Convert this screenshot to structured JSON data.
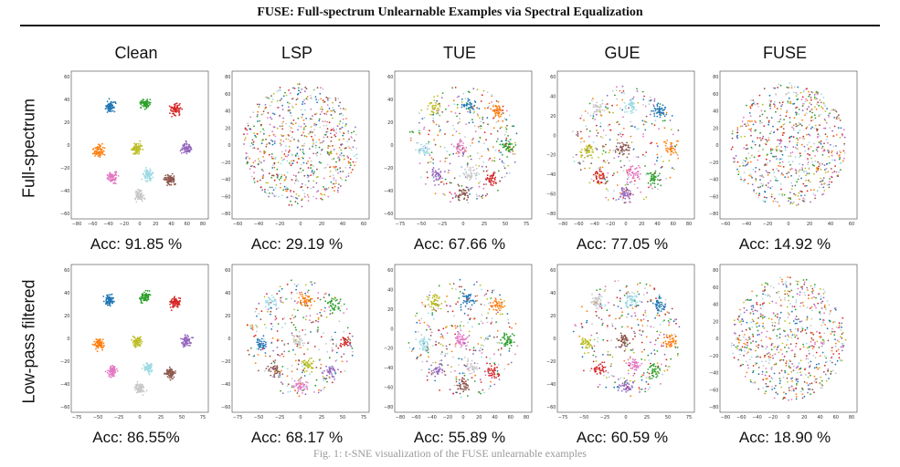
{
  "header": {
    "title": "FUSE: Full-spectrum Unlearnable Examples via Spectral Equalization"
  },
  "columns": [
    "Clean",
    "LSP",
    "TUE",
    "GUE",
    "FUSE"
  ],
  "rows": [
    {
      "label": "Full-spectrum",
      "panels": [
        {
          "acc": "Acc: 91.85 %",
          "style": "clustered",
          "xticks": [
            "−80",
            "−60",
            "−40",
            "−20",
            "0",
            "20",
            "40",
            "60",
            "80"
          ],
          "yticks": [
            "60",
            "40",
            "20",
            "0",
            "−20",
            "−40",
            "−60"
          ]
        },
        {
          "acc": "Acc: 29.19 %",
          "style": "mixed",
          "xticks": [
            "−60",
            "−40",
            "−20",
            "0",
            "20",
            "40",
            "60"
          ],
          "yticks": [
            "80",
            "60",
            "40",
            "20",
            "0",
            "−20",
            "−40",
            "−60",
            "−80"
          ]
        },
        {
          "acc": "Acc: 67.66 %",
          "style": "semi",
          "xticks": [
            "−75",
            "−50",
            "−25",
            "0",
            "25",
            "50",
            "75"
          ],
          "yticks": [
            "60",
            "40",
            "20",
            "0",
            "−20",
            "−40",
            "−60"
          ]
        },
        {
          "acc": "Acc: 77.05 %",
          "style": "semi",
          "xticks": [
            "−80",
            "−60",
            "−40",
            "−20",
            "0",
            "20",
            "40",
            "60",
            "80"
          ],
          "yticks": [
            "60",
            "40",
            "20",
            "0",
            "−20",
            "−40",
            "−60",
            "−80"
          ]
        },
        {
          "acc": "Acc: 14.92 %",
          "style": "mixed",
          "xticks": [
            "−60",
            "−40",
            "−20",
            "0",
            "20",
            "40",
            "60"
          ],
          "yticks": [
            "80",
            "60",
            "40",
            "20",
            "0",
            "−20",
            "−40",
            "−60",
            "−80"
          ]
        }
      ]
    },
    {
      "label": "Low-pass filtered",
      "panels": [
        {
          "acc": "Acc: 86.55%",
          "style": "clustered",
          "xticks": [
            "−75",
            "−50",
            "−25",
            "0",
            "25",
            "50",
            "75"
          ],
          "yticks": [
            "60",
            "40",
            "20",
            "0",
            "−20",
            "−40",
            "−60"
          ]
        },
        {
          "acc": "Acc: 68.17 %",
          "style": "semi",
          "xticks": [
            "−75",
            "−50",
            "−25",
            "0",
            "25",
            "50",
            "75"
          ],
          "yticks": [
            "60",
            "40",
            "20",
            "0",
            "−20",
            "−40",
            "−60"
          ]
        },
        {
          "acc": "Acc: 55.89 %",
          "style": "semi",
          "xticks": [
            "−80",
            "−60",
            "−40",
            "−20",
            "0",
            "20",
            "40",
            "60",
            "80"
          ],
          "yticks": [
            "60",
            "40",
            "20",
            "0",
            "−20",
            "−40",
            "−60",
            "−80"
          ]
        },
        {
          "acc": "Acc: 60.59 %",
          "style": "semi",
          "xticks": [
            "−75",
            "−50",
            "−25",
            "0",
            "25",
            "50",
            "75"
          ],
          "yticks": [
            "60",
            "40",
            "20",
            "0",
            "−20",
            "−40",
            "−60"
          ]
        },
        {
          "acc": "Acc: 18.90 %",
          "style": "mixed",
          "xticks": [
            "−80",
            "−60",
            "−40",
            "−20",
            "0",
            "20",
            "40",
            "60",
            "80"
          ],
          "yticks": [
            "80",
            "60",
            "40",
            "20",
            "0",
            "−20",
            "−40",
            "−60",
            "−80"
          ]
        }
      ]
    }
  ],
  "palette": [
    "#1f77b4",
    "#ff7f0e",
    "#2ca02c",
    "#d62728",
    "#9467bd",
    "#8c564b",
    "#e377c2",
    "#c7c7c7",
    "#bcbd22",
    "#9edae5"
  ],
  "caption": "Fig. 1: t-SNE visualization of the FUSE unlearnable examples"
}
